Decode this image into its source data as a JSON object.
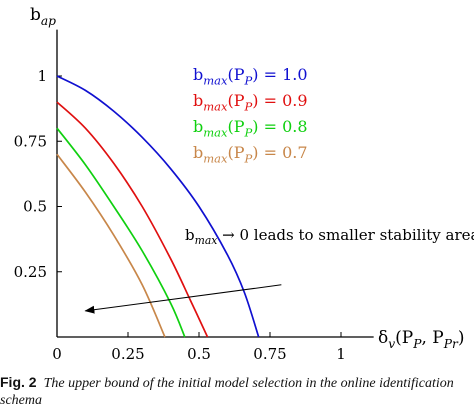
{
  "chart_data": {
    "type": "line",
    "ylabel": "b_ap",
    "xlabel": "δ_v(P_P, P_Pr)",
    "xlim": [
      0,
      1.1
    ],
    "ylim": [
      0,
      1.17
    ],
    "x_ticks": [
      "0",
      "0.25",
      "0.5",
      "0.75",
      "1"
    ],
    "y_ticks": [
      "0.25",
      "0.5",
      "0.75",
      "1"
    ],
    "grid": false,
    "legend_position": "top-right",
    "series": [
      {
        "name": "b_max(P_P) = 1.0",
        "color": "#1010d0",
        "x": [
          0,
          0.1,
          0.2,
          0.3,
          0.4,
          0.5,
          0.6,
          0.66,
          0.71
        ],
        "y": [
          1.0,
          0.945,
          0.865,
          0.765,
          0.645,
          0.5,
          0.315,
          0.17,
          0.0
        ]
      },
      {
        "name": "b_max(P_P) = 0.9",
        "color": "#e01010",
        "x": [
          0,
          0.1,
          0.2,
          0.3,
          0.4,
          0.47,
          0.53
        ],
        "y": [
          0.9,
          0.8,
          0.665,
          0.5,
          0.3,
          0.14,
          0.0
        ]
      },
      {
        "name": "b_max(P_P) = 0.8",
        "color": "#10d010",
        "x": [
          0,
          0.1,
          0.2,
          0.3,
          0.4,
          0.45
        ],
        "y": [
          0.8,
          0.66,
          0.5,
          0.33,
          0.13,
          0.0
        ]
      },
      {
        "name": "b_max(P_P) = 0.7",
        "color": "#c8874a",
        "x": [
          0,
          0.1,
          0.2,
          0.3,
          0.38
        ],
        "y": [
          0.7,
          0.555,
          0.39,
          0.2,
          0.0
        ]
      }
    ],
    "annotation": {
      "text": "b_max → 0 leads to smaller stability area",
      "arrow_from": [
        0.79,
        0.2
      ],
      "arrow_to": [
        0.1,
        0.1
      ]
    }
  },
  "caption": {
    "label": "Fig. 2",
    "text": "The upper bound of the initial model selection in the online identification schema"
  }
}
